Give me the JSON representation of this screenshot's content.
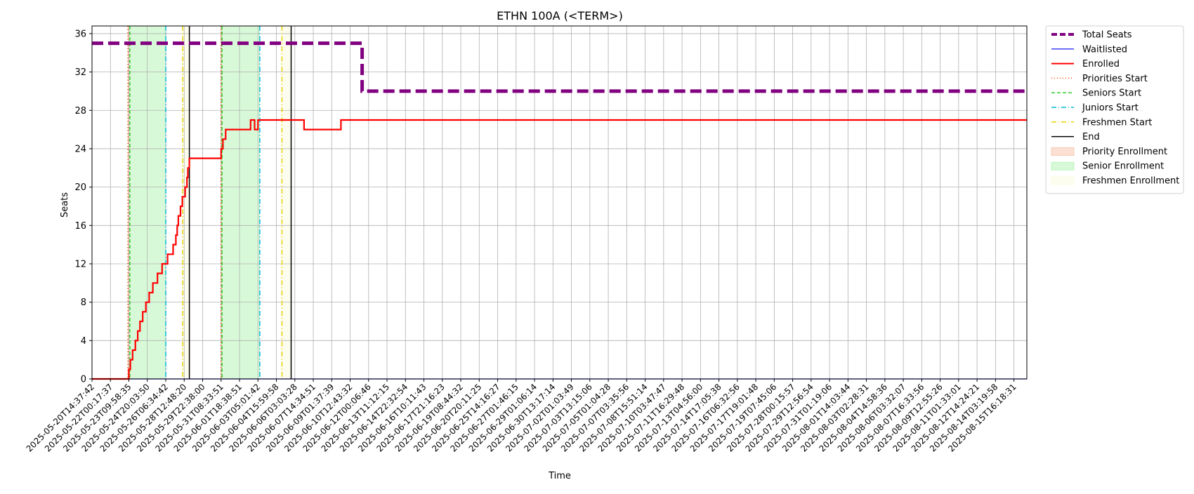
{
  "chart_data": {
    "type": "line",
    "title": "ETHN 100A (<TERM>)",
    "xlabel": "Time",
    "ylabel": "Seats",
    "ylim": [
      0,
      36.8
    ],
    "yticks": [
      0,
      4,
      8,
      12,
      16,
      20,
      24,
      28,
      32,
      36
    ],
    "grid": true,
    "legend_position": "outside-top-right",
    "x_tick_labels": [
      "2025-05-20T14:37:42",
      "2025-05-22T00:17:37",
      "2025-05-23T09:58:35",
      "2025-05-24T20:03:50",
      "2025-05-26T06:34:42",
      "2025-05-28T12:48:20",
      "2025-05-29T22:38:00",
      "2025-05-31T08:33:51",
      "2025-06-01T18:38:51",
      "2025-06-03T05:01:42",
      "2025-06-04T15:59:58",
      "2025-06-06T03:03:28",
      "2025-06-07T14:34:51",
      "2025-06-09T01:37:39",
      "2025-06-10T12:43:32",
      "2025-06-12T00:06:46",
      "2025-06-13T11:12:15",
      "2025-06-14T22:32:54",
      "2025-06-16T10:11:43",
      "2025-06-17T21:16:23",
      "2025-06-19T08:44:32",
      "2025-06-20T20:11:25",
      "2025-06-25T14:16:27",
      "2025-06-27T01:46:15",
      "2025-06-29T01:06:14",
      "2025-06-30T13:17:14",
      "2025-07-02T01:03:49",
      "2025-07-03T13:15:06",
      "2025-07-05T01:04:28",
      "2025-07-07T03:35:56",
      "2025-07-08T15:51:14",
      "2025-07-10T03:47:47",
      "2025-07-11T16:29:48",
      "2025-07-13T04:56:00",
      "2025-07-14T17:05:38",
      "2025-07-16T06:32:56",
      "2025-07-17T19:01:48",
      "2025-07-19T07:45:06",
      "2025-07-28T00:15:57",
      "2025-07-29T12:56:54",
      "2025-07-31T01:19:06",
      "2025-08-01T14:03:44",
      "2025-08-03T02:28:31",
      "2025-08-04T14:58:36",
      "2025-08-06T03:32:07",
      "2025-08-07T16:33:56",
      "2025-08-09T12:55:26",
      "2025-08-11T01:33:01",
      "2025-08-12T14:24:21",
      "2025-08-14T03:19:58",
      "2025-08-15T16:18:31"
    ],
    "x_range": [
      0,
      50.7
    ],
    "series": [
      {
        "name": "Total Seats",
        "style": "dashed-thick",
        "color": "#800080",
        "x": [
          0,
          14.65,
          14.65,
          50.7
        ],
        "y": [
          35,
          35,
          30,
          30
        ]
      },
      {
        "name": "Waitlisted",
        "style": "solid-thin",
        "color": "#0000ff",
        "x": [
          0,
          50.7
        ],
        "y": [
          0,
          0
        ]
      },
      {
        "name": "Enrolled",
        "style": "step",
        "color": "#ff0000",
        "x": [
          0,
          2.0,
          2.0,
          2.08,
          2.2,
          2.35,
          2.48,
          2.6,
          2.75,
          2.92,
          3.1,
          3.3,
          3.55,
          3.8,
          4.1,
          4.4,
          4.55,
          4.62,
          4.68,
          4.74,
          4.8,
          4.9,
          5.05,
          5.15,
          5.2,
          5.28,
          7.0,
          7.1,
          7.25,
          8.45,
          8.6,
          8.75,
          8.82,
          8.9,
          9.0,
          11.5,
          11.65,
          13.3,
          13.5,
          50.7
        ],
        "y": [
          0,
          0,
          1,
          2,
          3,
          4,
          5,
          6,
          7,
          8,
          9,
          10,
          11,
          12,
          13,
          14,
          15,
          16,
          17,
          17,
          18,
          19,
          20,
          21,
          22,
          23,
          24,
          25,
          26,
          26,
          27,
          27,
          26,
          26,
          27,
          26,
          26,
          26,
          27,
          27
        ]
      }
    ],
    "vertical_markers": [
      {
        "name": "Priorities Start",
        "color": "#ff4500",
        "style": "dotted",
        "x": [
          1.95,
          7.0
        ]
      },
      {
        "name": "Seniors Start",
        "color": "#32cd32",
        "style": "dashed",
        "x": [
          2.05,
          7.05
        ]
      },
      {
        "name": "Juniors Start",
        "color": "#00bcd4",
        "style": "dashdot",
        "x": [
          4.0,
          9.1
        ]
      },
      {
        "name": "Freshmen Start",
        "color": "#e6d200",
        "style": "dashdot",
        "x": [
          4.92,
          10.3
        ]
      },
      {
        "name": "End",
        "color": "#000000",
        "style": "solid",
        "x": [
          5.28,
          10.8
        ]
      }
    ],
    "shaded_regions": [
      {
        "name": "Priority Enrollment",
        "color": "#f4a582",
        "x0": 1.95,
        "x1": 2.05
      },
      {
        "name": "Senior Enrollment",
        "color": "#90ee90",
        "x0": 2.05,
        "x1": 4.0
      },
      {
        "name": "Senior Enrollment",
        "color": "#90ee90",
        "x0": 7.0,
        "x1": 9.1
      },
      {
        "name": "Freshmen Enrollment",
        "color": "#fafad2",
        "x0": 4.92,
        "x1": 5.28
      },
      {
        "name": "Freshmen Enrollment",
        "color": "#fafad2",
        "x0": 10.3,
        "x1": 10.8
      }
    ],
    "legend": [
      {
        "label": "Total Seats",
        "kind": "line",
        "color": "#800080",
        "dash": "8,4",
        "width": 4
      },
      {
        "label": "Waitlisted",
        "kind": "line",
        "color": "#0000ff",
        "dash": "",
        "width": 1.2
      },
      {
        "label": "Enrolled",
        "kind": "line",
        "color": "#ff0000",
        "dash": "",
        "width": 2
      },
      {
        "label": "Priorities Start",
        "kind": "line",
        "color": "#ff4500",
        "dash": "1,3",
        "width": 1.5
      },
      {
        "label": "Seniors Start",
        "kind": "line",
        "color": "#32cd32",
        "dash": "5,3",
        "width": 1.5
      },
      {
        "label": "Juniors Start",
        "kind": "line",
        "color": "#00bcd4",
        "dash": "7,3,1,3",
        "width": 1.5
      },
      {
        "label": "Freshmen Start",
        "kind": "line",
        "color": "#e6d200",
        "dash": "7,3,1,3",
        "width": 1.5
      },
      {
        "label": "End",
        "kind": "line",
        "color": "#000000",
        "dash": "",
        "width": 1.5
      },
      {
        "label": "Priority Enrollment",
        "kind": "patch",
        "color": "#f4a582"
      },
      {
        "label": "Senior Enrollment",
        "kind": "patch",
        "color": "#90ee90"
      },
      {
        "label": "Freshmen Enrollment",
        "kind": "patch",
        "color": "#fafad2"
      }
    ]
  }
}
